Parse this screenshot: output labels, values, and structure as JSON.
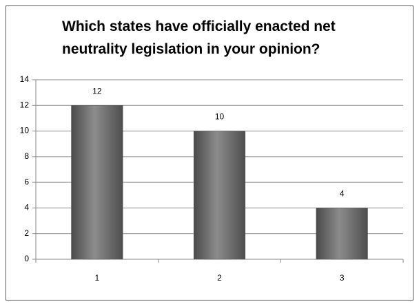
{
  "chart_data": {
    "type": "bar",
    "title": "Which states have officially enacted net neutrality legislation in your opinion?",
    "categories": [
      "1",
      "2",
      "3"
    ],
    "values": [
      12,
      10,
      4
    ],
    "color": "#6e6e6e",
    "ylim": [
      0,
      14
    ],
    "yticks": [
      0,
      2,
      4,
      6,
      8,
      10,
      12,
      14
    ],
    "grid": true
  }
}
